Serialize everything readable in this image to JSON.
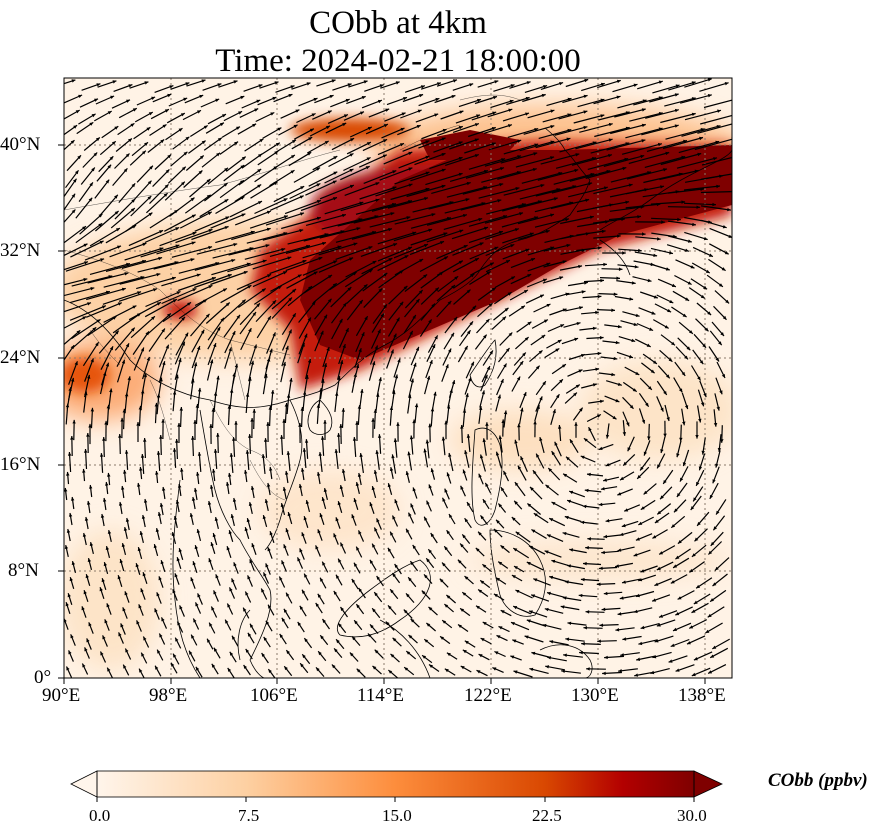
{
  "title": {
    "line1": "CObb at 4km",
    "line2": "Time: 2024-02-21 18:00:00"
  },
  "map": {
    "lon_range": [
      90,
      140
    ],
    "lat_range": [
      0,
      45
    ],
    "lon_ticks": [
      "90°E",
      "98°E",
      "106°E",
      "114°E",
      "122°E",
      "130°E",
      "138°E"
    ],
    "lat_ticks": [
      "0°",
      "8°N",
      "16°N",
      "24°N",
      "32°N",
      "40°N"
    ],
    "gridlines": true,
    "field_colors": [
      "#fff5eb",
      "#fdd0a2",
      "#fd8d3c",
      "#d94801",
      "#7f0000"
    ]
  },
  "colorbar": {
    "title": "CObb (ppbv)",
    "ticks": [
      "0.0",
      "7.5",
      "15.0",
      "22.5",
      "30.0"
    ],
    "range": [
      0,
      30
    ],
    "extend": "both"
  }
}
